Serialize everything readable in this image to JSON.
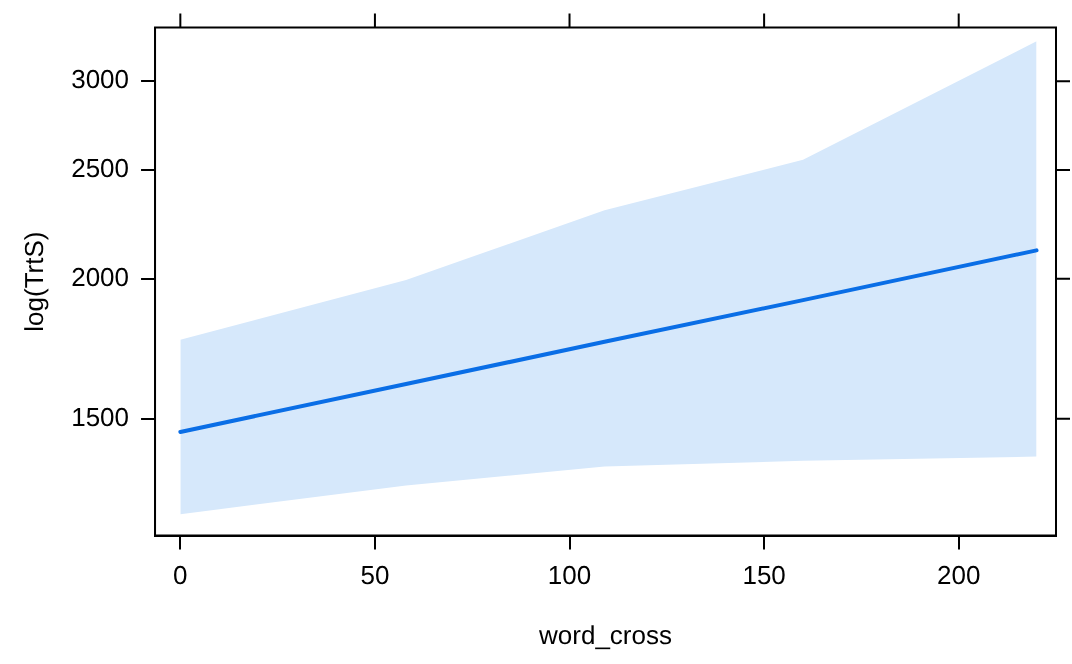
{
  "chart_data": {
    "type": "line",
    "xlabel": "word_cross",
    "ylabel": "log(TrtS)",
    "log": "y",
    "grid": false,
    "marker": "none",
    "line_style": "solid",
    "xlim": [
      -6.5,
      225
    ],
    "xticks": [
      0,
      50,
      100,
      150,
      200
    ],
    "ylim": [
      1180,
      3350
    ],
    "yticks": [
      1500,
      2000,
      2500,
      3000
    ],
    "series": [
      {
        "color": "#0a6ee6",
        "x": [
          0,
          58,
          109,
          160,
          220
        ],
        "values": [
          1460,
          1611,
          1757,
          1914,
          2120
        ],
        "lower": [
          1233,
          1308,
          1360,
          1376,
          1388
        ],
        "upper": [
          1764,
          1995,
          2302,
          2553,
          3257
        ]
      }
    ]
  }
}
